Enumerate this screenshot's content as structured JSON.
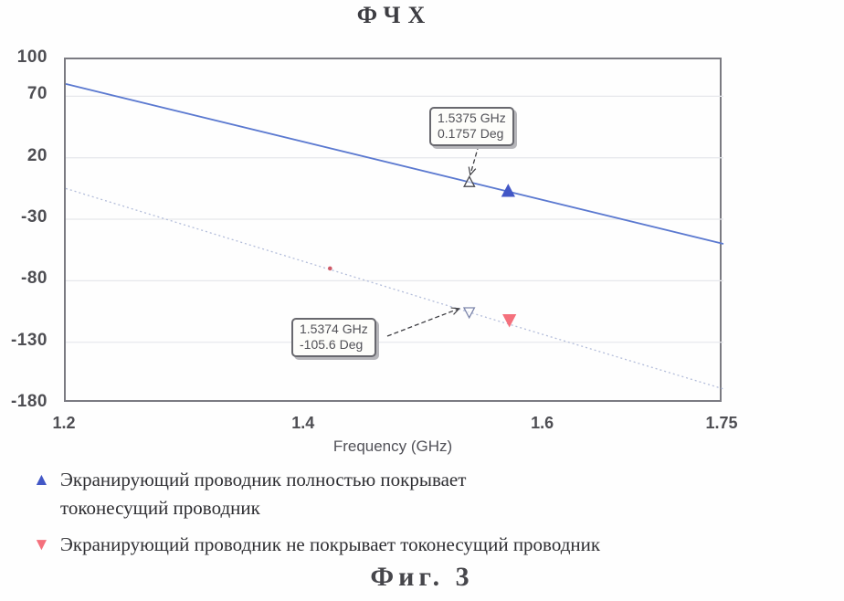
{
  "chart_data": {
    "type": "line",
    "title": "ФЧХ",
    "xlabel": "Frequency (GHz)",
    "xlim": [
      1.2,
      1.75
    ],
    "ylim": [
      -180,
      100
    ],
    "xticks": [
      1.2,
      1.4,
      1.6,
      1.75
    ],
    "xtick_labels": [
      "1.2",
      "1.4",
      "1.6",
      "1.75"
    ],
    "yticks": [
      100,
      70,
      20,
      -30,
      -80,
      -130,
      -180
    ],
    "grid_levels": [
      70,
      20,
      -30,
      -80,
      -130
    ],
    "grid": "horizontal-faint",
    "legend_position": "below",
    "series": [
      {
        "name": "Экранирующий проводник полностью покрывает токонесущий проводник",
        "color": "#5b79d0",
        "dash": "",
        "stroke_width": 1.8,
        "marker": "triangle-up",
        "marker_color": "#4257c6",
        "points": [
          [
            1.2,
            80
          ],
          [
            1.5375,
            0.1757
          ],
          [
            1.75,
            -50
          ]
        ],
        "marker_at": [
          1.57,
          -7
        ],
        "annotation": {
          "lines": [
            "1.5375 GHz",
            "0.1757 Deg"
          ],
          "at": [
            1.5375,
            0.1757
          ]
        }
      },
      {
        "name": "Экранирующий проводник не покрывает токонесущий проводник",
        "color": "#b3bdda",
        "dash": "2 3",
        "stroke_width": 1.3,
        "marker": "triangle-down",
        "marker_color": "#f4707c",
        "points": [
          [
            1.2,
            -5
          ],
          [
            1.5374,
            -105.6
          ],
          [
            1.75,
            -168
          ]
        ],
        "marker_at": [
          1.571,
          -112
        ],
        "dot": {
          "at": [
            1.421,
            -70
          ],
          "color": "#cf5a68"
        },
        "annotation": {
          "lines": [
            "1.5374 GHz",
            "-105.6 Deg"
          ],
          "at": [
            1.5374,
            -105.6
          ]
        }
      }
    ]
  },
  "legend": {
    "items": [
      {
        "glyph": "▲",
        "color": "#4257c6",
        "label": "Экранирующий проводник полностью покрывает\nтоконесущий проводник"
      },
      {
        "glyph": "▼",
        "color": "#f4707c",
        "label": "Экранирующий проводник не покрывает токонесущий проводник"
      }
    ]
  },
  "caption": "Фиг. 3"
}
